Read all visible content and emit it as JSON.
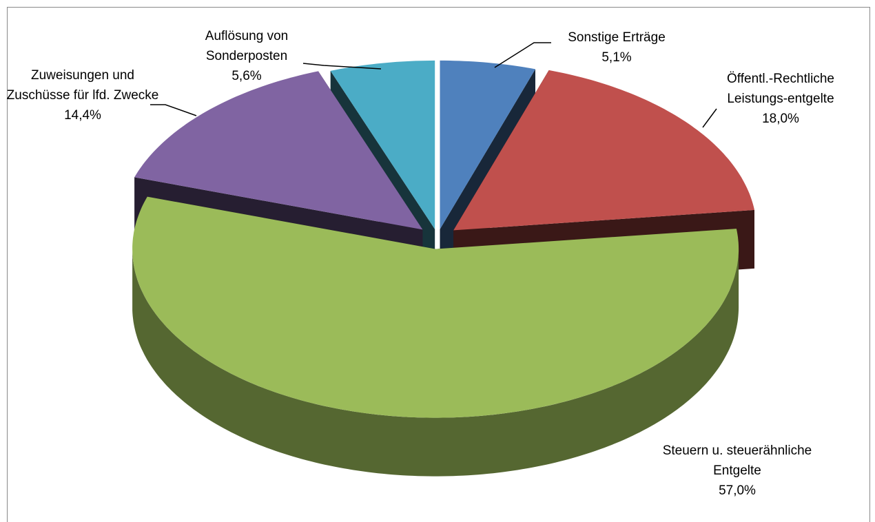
{
  "chart_data": {
    "type": "pie",
    "categories": [
      "Sonstige Erträge",
      "Öffentl.-Rechtliche Leistungs-entgelte",
      "Steuern u. steuerähnliche Entgelte",
      "Zuweisungen und Zuschüsse für lfd. Zwecke",
      "Auflösung von Sonderposten"
    ],
    "values": [
      5.1,
      18.0,
      57.0,
      14.4,
      5.6
    ],
    "value_labels": [
      "5,1%",
      "18,0%",
      "57,0%",
      "14,4%",
      "5,6%"
    ],
    "colors": [
      "#4f81bd",
      "#c0504d",
      "#9bbb59",
      "#8064a2",
      "#4bacc6"
    ]
  }
}
